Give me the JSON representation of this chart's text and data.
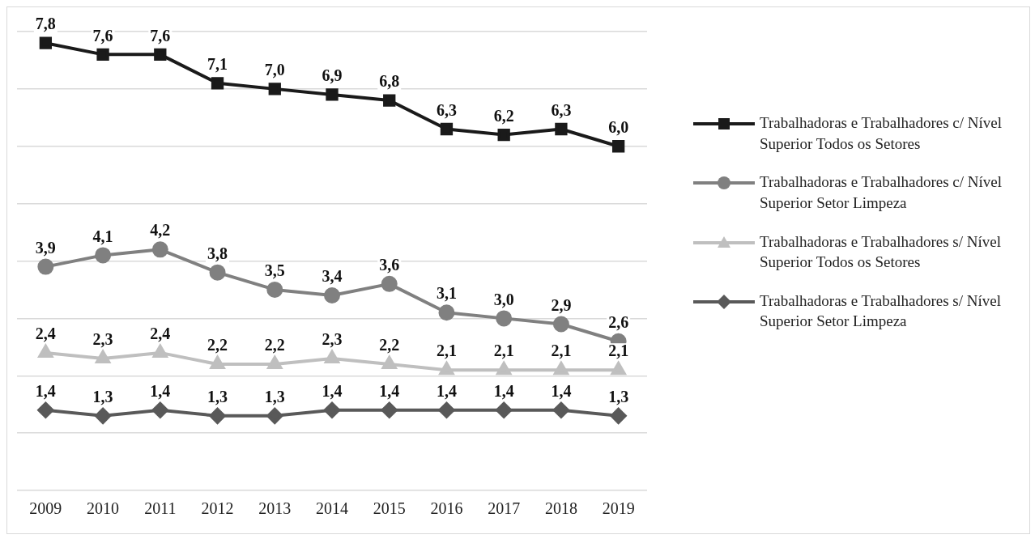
{
  "chart_data": {
    "type": "line",
    "categories": [
      "2009",
      "2010",
      "2011",
      "2012",
      "2013",
      "2014",
      "2015",
      "2016",
      "2017",
      "2018",
      "2019"
    ],
    "series": [
      {
        "name": "Trabalhadoras e Trabalhadores c/ Nível Superior Todos os Setores",
        "color": "#1a1a1a",
        "marker": "square",
        "values": [
          7.8,
          7.6,
          7.6,
          7.1,
          7.0,
          6.9,
          6.8,
          6.3,
          6.2,
          6.3,
          6.0
        ],
        "value_labels": [
          "7,8",
          "7,6",
          "7,6",
          "7,1",
          "7,0",
          "6,9",
          "6,8",
          "6,3",
          "6,2",
          "6,3",
          "6,0"
        ]
      },
      {
        "name": "Trabalhadoras e Trabalhadores c/ Nível Superior Setor Limpeza",
        "color": "#808080",
        "marker": "circle",
        "values": [
          3.9,
          4.1,
          4.2,
          3.8,
          3.5,
          3.4,
          3.6,
          3.1,
          3.0,
          2.9,
          2.6
        ],
        "value_labels": [
          "3,9",
          "4,1",
          "4,2",
          "3,8",
          "3,5",
          "3,4",
          "3,6",
          "3,1",
          "3,0",
          "2,9",
          "2,6"
        ]
      },
      {
        "name": "Trabalhadoras e Trabalhadores s/ Nível Superior Todos os Setores",
        "color": "#bfbfbf",
        "marker": "triangle",
        "values": [
          2.4,
          2.3,
          2.4,
          2.2,
          2.2,
          2.3,
          2.2,
          2.1,
          2.1,
          2.1,
          2.1
        ],
        "value_labels": [
          "2,4",
          "2,3",
          "2,4",
          "2,2",
          "2,2",
          "2,3",
          "2,2",
          "2,1",
          "2,1",
          "2,1",
          "2,1"
        ]
      },
      {
        "name": "Trabalhadoras e Trabalhadores s/ Nível Superior Setor Limpeza",
        "color": "#595959",
        "marker": "diamond",
        "values": [
          1.4,
          1.3,
          1.4,
          1.3,
          1.3,
          1.4,
          1.4,
          1.4,
          1.4,
          1.4,
          1.3
        ],
        "value_labels": [
          "1,4",
          "1,3",
          "1,4",
          "1,3",
          "1,3",
          "1,4",
          "1,4",
          "1,4",
          "1,4",
          "1,4",
          "1,3"
        ]
      }
    ],
    "tick_labels": "x",
    "grid": "y",
    "legend": "right"
  }
}
